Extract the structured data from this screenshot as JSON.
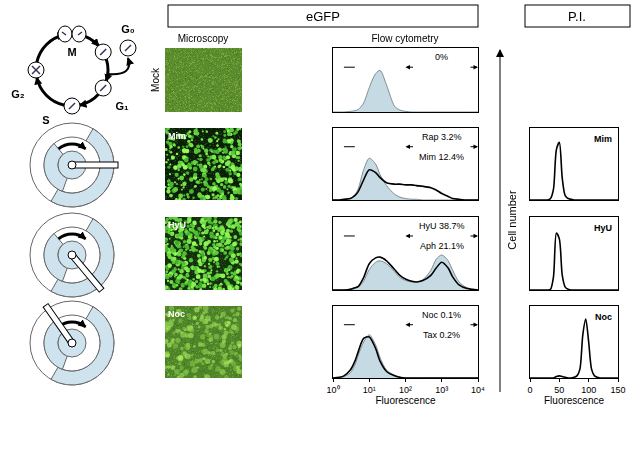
{
  "figure": {
    "headers": [
      "eGFP",
      "P.I."
    ],
    "columns": [
      "Microscopy",
      "Flow cytometry"
    ],
    "axis_label": "Cell number",
    "phases": [
      "G₂",
      "M",
      "S",
      "G₁",
      "G₀"
    ],
    "rows": [
      "Mock",
      "Mim",
      "HyU",
      "Noc"
    ]
  },
  "chart_data": [
    {
      "type": "line",
      "log": "x",
      "xlim": [
        1,
        10000
      ],
      "ylim": [
        0,
        100
      ],
      "tick_labels": false,
      "gate": [
        100,
        10000
      ],
      "x": [
        1,
        1.5,
        2,
        3,
        4,
        5,
        7,
        10,
        15,
        20,
        30,
        50,
        70,
        100,
        150,
        200,
        300,
        500,
        700,
        1000,
        1500,
        2000,
        3000,
        5000,
        10000
      ],
      "series": [
        {
          "name": "0%",
          "type": "area",
          "color": "#c6dae4",
          "values": [
            0,
            0,
            0,
            1,
            2,
            4,
            14,
            38,
            60,
            65,
            42,
            9,
            3,
            1,
            0,
            0,
            0,
            0,
            0,
            0,
            0,
            0,
            0,
            0,
            0
          ]
        }
      ]
    },
    {
      "type": "line",
      "log": "x",
      "xlim": [
        1,
        10000
      ],
      "ylim": [
        0,
        100
      ],
      "tick_labels": false,
      "gate": [
        100,
        10000
      ],
      "x": [
        1,
        1.5,
        2,
        3,
        4,
        5,
        7,
        10,
        15,
        20,
        30,
        50,
        70,
        100,
        150,
        200,
        300,
        500,
        700,
        1000,
        1500,
        2000,
        3000,
        5000,
        10000
      ],
      "series": [
        {
          "name": "Rap 3.2%",
          "type": "area",
          "color": "#c6dae4",
          "values": [
            0,
            0,
            0,
            2,
            7,
            16,
            42,
            58,
            50,
            35,
            20,
            8,
            4,
            2,
            1,
            1,
            0,
            0,
            0,
            0,
            0,
            0,
            0,
            0,
            0
          ]
        },
        {
          "name": "Mim 12.4%",
          "type": "line",
          "color": "#000000",
          "values": [
            0,
            0,
            1,
            2,
            6,
            12,
            28,
            42,
            38,
            31,
            24,
            22,
            22,
            21,
            21,
            20,
            19,
            17,
            14,
            9,
            5,
            2,
            1,
            0,
            0
          ]
        }
      ]
    },
    {
      "type": "line",
      "log": "x",
      "xlim": [
        1,
        10000
      ],
      "ylim": [
        0,
        100
      ],
      "tick_labels": false,
      "gate": [
        100,
        10000
      ],
      "x": [
        1,
        1.5,
        2,
        3,
        4,
        5,
        7,
        10,
        15,
        20,
        30,
        50,
        70,
        100,
        150,
        200,
        300,
        500,
        700,
        1000,
        1500,
        2000,
        3000,
        5000,
        10000
      ],
      "series": [
        {
          "name": "HyU 38.7%",
          "type": "area",
          "color": "#c6dae4",
          "values": [
            0,
            0,
            0,
            1,
            2,
            4,
            12,
            28,
            38,
            40,
            36,
            25,
            17,
            13,
            11,
            11,
            14,
            27,
            42,
            48,
            40,
            27,
            11,
            3,
            0
          ]
        },
        {
          "name": "Aph 21.1%",
          "type": "line",
          "color": "#000000",
          "values": [
            0,
            0,
            0,
            1,
            3,
            5,
            17,
            36,
            44,
            45,
            40,
            28,
            20,
            15,
            12,
            11,
            13,
            20,
            30,
            38,
            30,
            18,
            7,
            2,
            0
          ]
        }
      ]
    },
    {
      "type": "line",
      "log": "x",
      "xlim": [
        1,
        10000
      ],
      "ylim": [
        0,
        100
      ],
      "tick_labels": "x",
      "gate": [
        100,
        10000
      ],
      "x_label": "Fluorescence",
      "xticks": [
        {
          "value": 1,
          "label": "10⁰"
        },
        {
          "value": 10,
          "label": "10¹"
        },
        {
          "value": 100,
          "label": "10²"
        },
        {
          "value": 1000,
          "label": "10³"
        },
        {
          "value": 10000,
          "label": "10⁴"
        }
      ],
      "x": [
        1,
        1.5,
        2,
        3,
        4,
        5,
        7,
        10,
        15,
        20,
        30,
        50,
        70,
        100,
        150,
        200,
        300,
        500,
        700,
        1000,
        1500,
        2000,
        3000,
        5000,
        10000
      ],
      "series": [
        {
          "name": "Noc 0.1%",
          "type": "area",
          "color": "#c6dae4",
          "values": [
            0,
            0,
            2,
            7,
            18,
            32,
            50,
            60,
            46,
            28,
            11,
            4,
            1,
            0,
            0,
            0,
            0,
            0,
            0,
            0,
            0,
            0,
            0,
            0,
            0
          ]
        },
        {
          "name": "Tax 0.2%",
          "type": "line",
          "color": "#000000",
          "values": [
            0,
            1,
            3,
            11,
            23,
            37,
            55,
            57,
            41,
            23,
            9,
            3,
            1,
            0,
            0,
            0,
            0,
            0,
            0,
            0,
            0,
            0,
            0,
            0,
            0
          ]
        }
      ]
    },
    {
      "type": "line",
      "title": "Mim",
      "xlim": [
        0,
        150
      ],
      "ylim": [
        0,
        100
      ],
      "tick_labels": false,
      "x": [
        0,
        5,
        10,
        15,
        20,
        25,
        30,
        35,
        40,
        45,
        50,
        55,
        60,
        65,
        70,
        75,
        80,
        85,
        90,
        95,
        100,
        105,
        110,
        115,
        120,
        125,
        130,
        135,
        140,
        145,
        150
      ],
      "series": [
        {
          "color": "#000000",
          "values": [
            0,
            0,
            0,
            0,
            0,
            0,
            0,
            2,
            15,
            70,
            80,
            30,
            6,
            2,
            1,
            0,
            0,
            0,
            0,
            0,
            0,
            0,
            0,
            0,
            0,
            0,
            0,
            0,
            0,
            0,
            0
          ]
        }
      ]
    },
    {
      "type": "line",
      "title": "HyU",
      "xlim": [
        0,
        150
      ],
      "ylim": [
        0,
        100
      ],
      "tick_labels": false,
      "x": [
        0,
        5,
        10,
        15,
        20,
        25,
        30,
        35,
        40,
        45,
        50,
        55,
        60,
        65,
        70,
        75,
        80,
        85,
        90,
        95,
        100,
        105,
        110,
        115,
        120,
        125,
        130,
        135,
        140,
        145,
        150
      ],
      "series": [
        {
          "color": "#000000",
          "values": [
            0,
            0,
            0,
            0,
            0,
            0,
            0,
            1,
            18,
            78,
            70,
            20,
            4,
            1,
            0,
            0,
            0,
            0,
            0,
            0,
            0,
            0,
            0,
            0,
            0,
            0,
            0,
            0,
            0,
            0,
            0
          ]
        }
      ]
    },
    {
      "type": "line",
      "title": "Noc",
      "xlim": [
        0,
        150
      ],
      "ylim": [
        0,
        100
      ],
      "tick_labels": "x",
      "xticks": [
        0,
        50,
        100,
        150
      ],
      "x_label": "Fluorescence",
      "x": [
        0,
        5,
        10,
        15,
        20,
        25,
        30,
        35,
        40,
        45,
        50,
        55,
        60,
        65,
        70,
        75,
        80,
        85,
        90,
        95,
        100,
        105,
        110,
        115,
        120,
        125,
        130,
        135,
        140,
        145,
        150
      ],
      "series": [
        {
          "color": "#000000",
          "values": [
            0,
            0,
            0,
            0,
            0,
            0,
            0,
            0,
            0,
            2,
            3,
            2,
            1,
            0,
            0,
            1,
            3,
            12,
            60,
            82,
            50,
            12,
            3,
            1,
            0,
            0,
            0,
            0,
            0,
            0,
            0
          ]
        }
      ]
    }
  ]
}
